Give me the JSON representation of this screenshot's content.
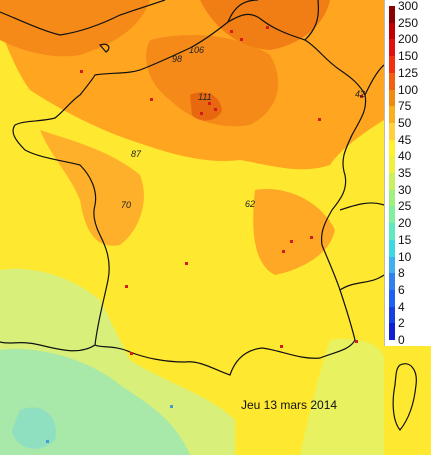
{
  "map": {
    "date": "Jeu 13 mars 2014",
    "colors": {
      "background": "#ffe830",
      "high_zone": "#ff9f1c",
      "very_high_zone": "#f07a10",
      "low_zone": "#d8f07a",
      "lowest_zone": "#9fe8b0",
      "border": "#111111",
      "station": "#d41a1a"
    },
    "city_values": [
      "98",
      "106",
      "111",
      "87",
      "70",
      "62",
      "42"
    ]
  },
  "legend": {
    "labels": [
      "300",
      "250",
      "200",
      "150",
      "125",
      "100",
      "75",
      "50",
      "45",
      "40",
      "35",
      "30",
      "25",
      "20",
      "15",
      "10",
      "8",
      "6",
      "4",
      "2",
      "0"
    ],
    "colors": [
      "#8b0000",
      "#c00000",
      "#e01010",
      "#f03010",
      "#f06010",
      "#f08a10",
      "#f8b020",
      "#ffd040",
      "#fff030",
      "#f0f040",
      "#c8f060",
      "#a0f080",
      "#80f0a0",
      "#60e8c0",
      "#40d8e0",
      "#40b0f0",
      "#3080f0",
      "#2060f0",
      "#1840e0",
      "#1020d0"
    ]
  }
}
